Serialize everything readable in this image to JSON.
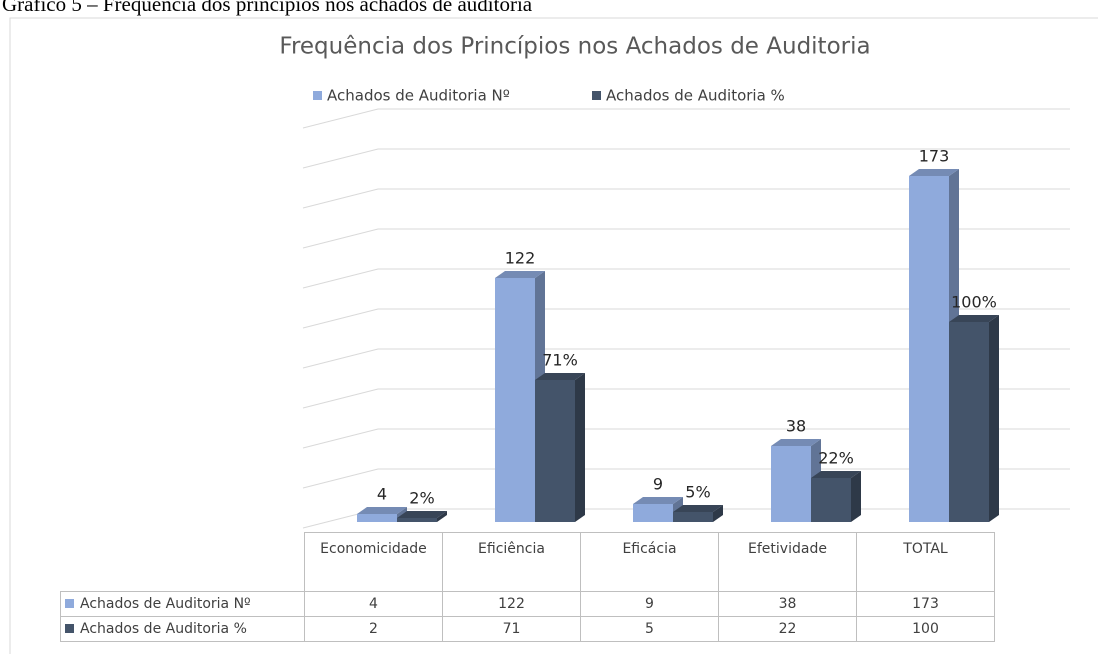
{
  "caption": "Gráfico 5 – Frequência dos princípios nos achados de auditoria",
  "chart_data": {
    "type": "bar3d",
    "title": "Frequência dos Princípios nos Achados de Auditoria",
    "categories": [
      "Economicidade",
      "Eficiência",
      "Eficácia",
      "Efetividade",
      "TOTAL"
    ],
    "series": [
      {
        "name": "Achados de Auditoria Nº",
        "color": "#8faadc",
        "values": [
          4,
          122,
          9,
          38,
          173
        ]
      },
      {
        "name": "Achados de Auditoria %",
        "color": "#44546a",
        "values": [
          2,
          71,
          5,
          22,
          100
        ],
        "value_labels": [
          "2%",
          "71%",
          "5%",
          "22%",
          "100%"
        ]
      }
    ],
    "ylim": [
      0,
      200
    ],
    "yticks": [
      0,
      20,
      40,
      60,
      80,
      100,
      120,
      140,
      160,
      180,
      200
    ],
    "grid": true,
    "legend": "top",
    "data_table": true
  }
}
